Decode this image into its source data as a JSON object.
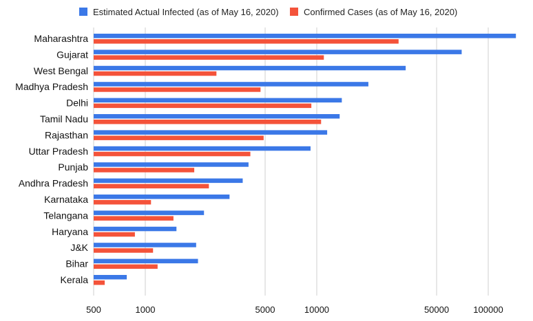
{
  "chart_data": {
    "type": "bar",
    "orientation": "horizontal",
    "x_scale": "log",
    "xlim": [
      500,
      150000
    ],
    "grid": true,
    "legend_position": "top",
    "categories": [
      "Maharashtra",
      "Gujarat",
      "West Bengal",
      "Madhya Pradesh",
      "Delhi",
      "Tamil Nadu",
      "Rajasthan",
      "Uttar Pradesh",
      "Punjab",
      "Andhra Pradesh",
      "Karnataka",
      "Telangana",
      "Haryana",
      "J&K",
      "Bihar",
      "Kerala"
    ],
    "series": [
      {
        "name": "Estimated Actual Infected (as of May 16, 2020)",
        "color": "#3b78e7",
        "values": [
          145000,
          70000,
          33000,
          20000,
          14000,
          13600,
          11500,
          9200,
          4000,
          3700,
          3100,
          2200,
          1520,
          1980,
          2030,
          780
        ]
      },
      {
        "name": "Confirmed Cases (as of May 16, 2020)",
        "color": "#f4533a",
        "values": [
          30000,
          11000,
          2600,
          4700,
          9300,
          10600,
          4900,
          4100,
          1930,
          2350,
          1080,
          1460,
          870,
          1110,
          1180,
          580
        ]
      }
    ],
    "x_ticks": [
      500,
      1000,
      5000,
      10000,
      50000,
      100000
    ],
    "x_tick_labels": [
      "500",
      "1000",
      "5000",
      "10000",
      "50000",
      "100000"
    ]
  }
}
